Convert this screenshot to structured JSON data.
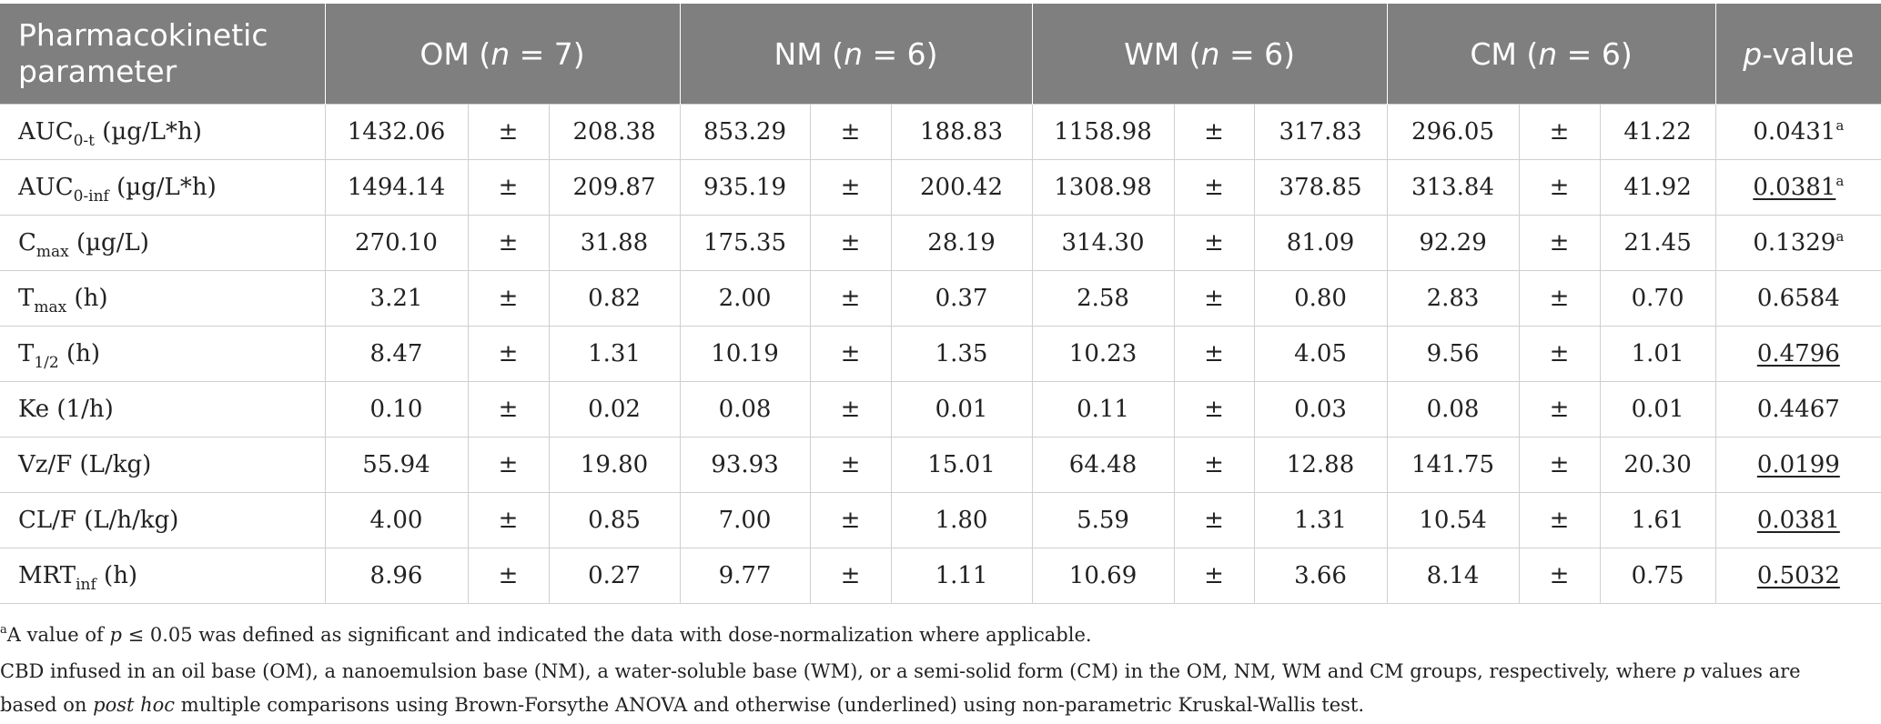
{
  "header": {
    "param": "Pharmacokinetic parameter",
    "groups": [
      {
        "name": "OM",
        "n_label": "n",
        "n_value": " = 7"
      },
      {
        "name": "NM",
        "n_label": "n",
        "n_value": " = 6"
      },
      {
        "name": "WM",
        "n_label": "n",
        "n_value": " = 6"
      },
      {
        "name": "CM",
        "n_label": "n",
        "n_value": " = 6"
      }
    ],
    "pvalue_p": "p",
    "pvalue_rest": "-value"
  },
  "pm": "±",
  "rows": [
    {
      "base": "AUC",
      "sub": "0-t",
      "unit": " (µg/L*h)",
      "om": [
        "1432.06",
        "208.38"
      ],
      "nm": [
        "853.29",
        "188.83"
      ],
      "wm": [
        "1158.98",
        "317.83"
      ],
      "cm": [
        "296.05",
        "41.22"
      ],
      "p": "0.0431",
      "p_sup": "a",
      "p_underline": false
    },
    {
      "base": "AUC",
      "sub": "0-inf",
      "unit": " (µg/L*h)",
      "om": [
        "1494.14",
        "209.87"
      ],
      "nm": [
        "935.19",
        "200.42"
      ],
      "wm": [
        "1308.98",
        "378.85"
      ],
      "cm": [
        "313.84",
        "41.92"
      ],
      "p": "0.0381",
      "p_sup": "a",
      "p_underline": true
    },
    {
      "base": "C",
      "sub": "max",
      "unit": " (µg/L)",
      "om": [
        "270.10",
        "31.88"
      ],
      "nm": [
        "175.35",
        "28.19"
      ],
      "wm": [
        "314.30",
        "81.09"
      ],
      "cm": [
        "92.29",
        "21.45"
      ],
      "p": "0.1329",
      "p_sup": "a",
      "p_underline": false
    },
    {
      "base": "T",
      "sub": "max",
      "unit": " (h)",
      "om": [
        "3.21",
        "0.82"
      ],
      "nm": [
        "2.00",
        "0.37"
      ],
      "wm": [
        "2.58",
        "0.80"
      ],
      "cm": [
        "2.83",
        "0.70"
      ],
      "p": "0.6584",
      "p_sup": "",
      "p_underline": false
    },
    {
      "base": "T",
      "sub": "1/2",
      "unit": " (h)",
      "om": [
        "8.47",
        "1.31"
      ],
      "nm": [
        "10.19",
        "1.35"
      ],
      "wm": [
        "10.23",
        "4.05"
      ],
      "cm": [
        "9.56",
        "1.01"
      ],
      "p": "0.4796",
      "p_sup": "",
      "p_underline": true
    },
    {
      "base": "Ke (1/h)",
      "sub": "",
      "unit": "",
      "om": [
        "0.10",
        "0.02"
      ],
      "nm": [
        "0.08",
        "0.01"
      ],
      "wm": [
        "0.11",
        "0.03"
      ],
      "cm": [
        "0.08",
        "0.01"
      ],
      "p": "0.4467",
      "p_sup": "",
      "p_underline": false
    },
    {
      "base": "Vz/F (L/kg)",
      "sub": "",
      "unit": "",
      "om": [
        "55.94",
        "19.80"
      ],
      "nm": [
        "93.93",
        "15.01"
      ],
      "wm": [
        "64.48",
        "12.88"
      ],
      "cm": [
        "141.75",
        "20.30"
      ],
      "p": "0.0199",
      "p_sup": "",
      "p_underline": true
    },
    {
      "base": "CL/F (L/h/kg)",
      "sub": "",
      "unit": "",
      "om": [
        "4.00",
        "0.85"
      ],
      "nm": [
        "7.00",
        "1.80"
      ],
      "wm": [
        "5.59",
        "1.31"
      ],
      "cm": [
        "10.54",
        "1.61"
      ],
      "p": "0.0381",
      "p_sup": "",
      "p_underline": true
    },
    {
      "base": "MRT",
      "sub": "inf",
      "unit": " (h)",
      "om": [
        "8.96",
        "0.27"
      ],
      "nm": [
        "9.77",
        "1.11"
      ],
      "wm": [
        "10.69",
        "3.66"
      ],
      "cm": [
        "8.14",
        "0.75"
      ],
      "p": "0.5032",
      "p_sup": "",
      "p_underline": true
    }
  ],
  "footnotes": {
    "note1_sup": "a",
    "note1_a": "A value of ",
    "note1_p": "p",
    "note1_b": " ≤ 0.05 was defined as significant and indicated the data with dose-normalization where applicable.",
    "note2_a": "CBD infused in an oil base (OM), a nanoemulsion base (NM), a water-soluble base (WM), or a semi-solid form (CM) in the OM, NM, WM and CM groups, respectively, where ",
    "note2_p": "p",
    "note2_b": " values are",
    "note3_a": "based on ",
    "note3_em": "post hoc",
    "note3_b": " multiple comparisons using Brown-Forsythe ANOVA and otherwise (underlined) using non-parametric Kruskal-Wallis test."
  }
}
